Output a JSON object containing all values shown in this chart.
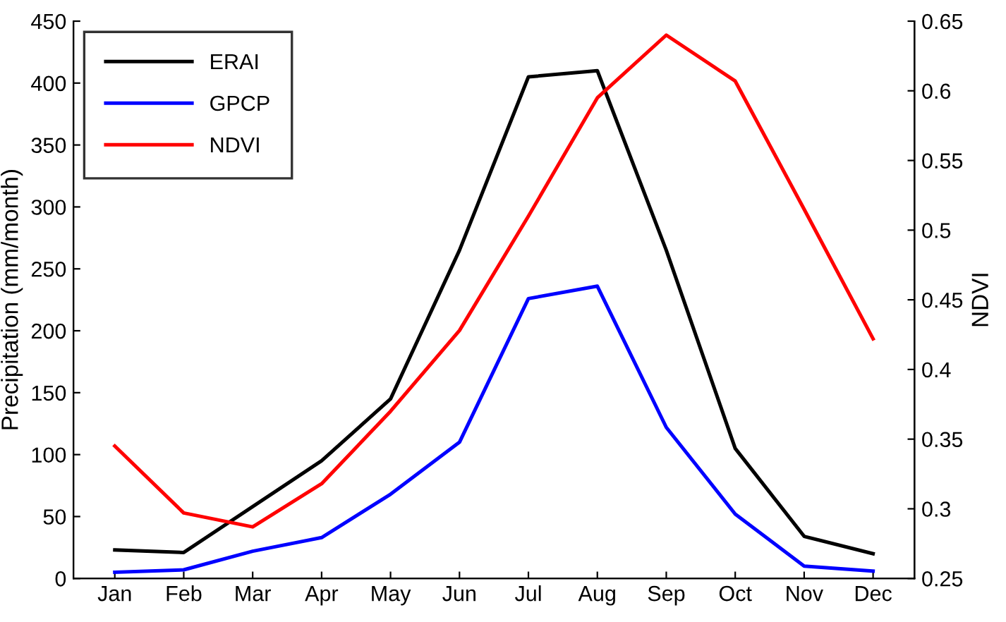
{
  "chart_data": {
    "type": "line",
    "categories": [
      "Jan",
      "Feb",
      "Mar",
      "Apr",
      "May",
      "Jun",
      "Jul",
      "Aug",
      "Sep",
      "Oct",
      "Nov",
      "Dec"
    ],
    "ylabel": "Precipitation (mm/month)",
    "y2label": "NDVI",
    "ylim": [
      0,
      450
    ],
    "yticks": [
      0,
      50,
      100,
      150,
      200,
      250,
      300,
      350,
      400,
      450
    ],
    "y2lim": [
      0.25,
      0.65
    ],
    "y2ticks": [
      0.25,
      0.3,
      0.35,
      0.4,
      0.45,
      0.5,
      0.55,
      0.6,
      0.65
    ],
    "legend": "top left",
    "grid": false,
    "series": [
      {
        "name": "ERAI",
        "color": "#000000",
        "values": [
          23,
          21,
          58,
          95,
          145,
          265,
          405,
          410,
          265,
          105,
          34,
          20
        ]
      },
      {
        "name": "GPCP",
        "color": "#0000ff",
        "values": [
          5,
          7,
          22,
          33,
          68,
          110,
          226,
          236,
          122,
          52,
          10,
          6
        ]
      },
      {
        "name": "NDVI",
        "color": "#ff0000",
        "axis": "y2",
        "values": [
          0.345,
          0.297,
          0.287,
          0.318,
          0.37,
          0.428,
          0.51,
          0.595,
          0.64,
          0.607,
          0.515,
          0.422
        ]
      }
    ]
  }
}
